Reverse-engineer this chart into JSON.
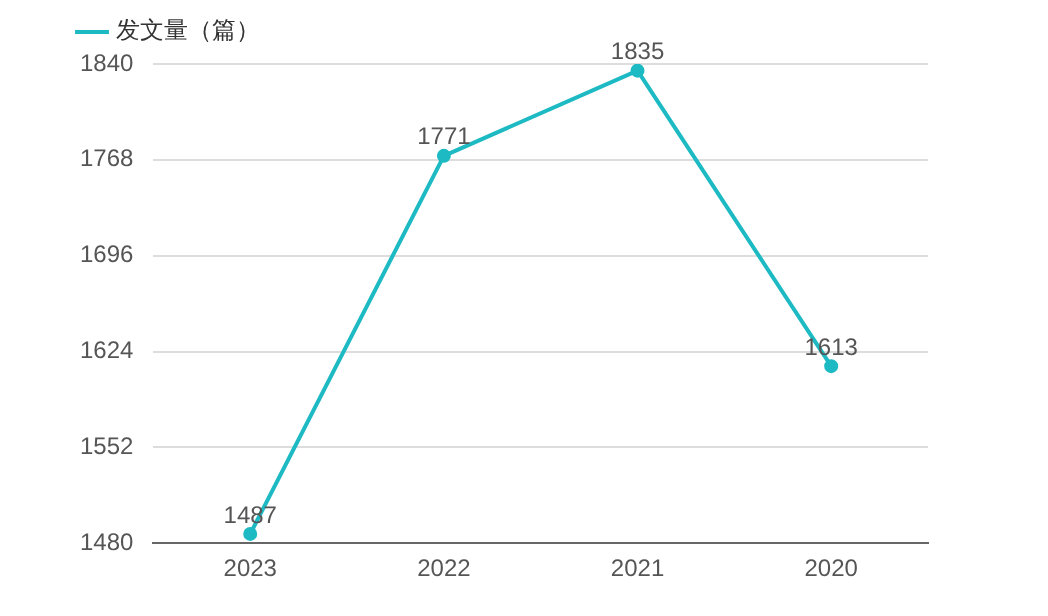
{
  "chart_data": {
    "type": "line",
    "categories": [
      "2023",
      "2022",
      "2021",
      "2020"
    ],
    "series": [
      {
        "name": "发文量（篇）",
        "color": "#1dbac4",
        "values": [
          1487,
          1771,
          1835,
          1613
        ]
      }
    ],
    "ylim": [
      1480,
      1840
    ],
    "yticks": [
      1480,
      1552,
      1624,
      1696,
      1768,
      1840
    ],
    "grid": "y",
    "legend": "top left",
    "marker": "circle",
    "line_style": "solid",
    "data_labels": true
  }
}
